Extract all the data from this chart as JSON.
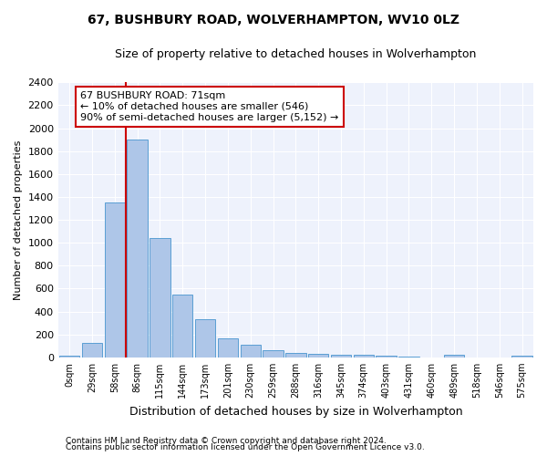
{
  "title1": "67, BUSHBURY ROAD, WOLVERHAMPTON, WV10 0LZ",
  "title2": "Size of property relative to detached houses in Wolverhampton",
  "xlabel": "Distribution of detached houses by size in Wolverhampton",
  "ylabel": "Number of detached properties",
  "footnote1": "Contains HM Land Registry data © Crown copyright and database right 2024.",
  "footnote2": "Contains public sector information licensed under the Open Government Licence v3.0.",
  "annotation_line1": "67 BUSHBURY ROAD: 71sqm",
  "annotation_line2": "← 10% of detached houses are smaller (546)",
  "annotation_line3": "90% of semi-detached houses are larger (5,152) →",
  "bar_color": "#aec6e8",
  "bar_edge_color": "#5a9fd4",
  "vline_color": "#cc0000",
  "annotation_box_edge": "#cc0000",
  "background_color": "#eef2fc",
  "grid_color": "#ffffff",
  "categories": [
    "0sqm",
    "29sqm",
    "58sqm",
    "86sqm",
    "115sqm",
    "144sqm",
    "173sqm",
    "201sqm",
    "230sqm",
    "259sqm",
    "288sqm",
    "316sqm",
    "345sqm",
    "374sqm",
    "403sqm",
    "431sqm",
    "460sqm",
    "489sqm",
    "518sqm",
    "546sqm",
    "575sqm"
  ],
  "values": [
    15,
    125,
    1350,
    1900,
    1045,
    545,
    335,
    165,
    110,
    65,
    40,
    30,
    25,
    20,
    15,
    5,
    0,
    20,
    0,
    0,
    15
  ],
  "vline_x": 2.5,
  "ylim": [
    0,
    2400
  ],
  "yticks": [
    0,
    200,
    400,
    600,
    800,
    1000,
    1200,
    1400,
    1600,
    1800,
    2000,
    2200,
    2400
  ]
}
